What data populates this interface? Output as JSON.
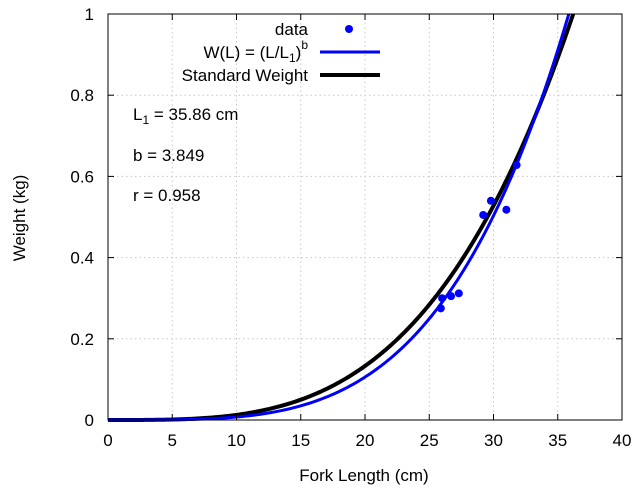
{
  "chart_data": {
    "type": "scatter",
    "xlabel": "Fork Length (cm)",
    "ylabel": "Weight (kg)",
    "xlim": [
      0,
      40
    ],
    "ylim": [
      0,
      1
    ],
    "x_ticks": [
      "0",
      "5",
      "10",
      "15",
      "20",
      "25",
      "30",
      "35",
      "40"
    ],
    "y_ticks": [
      "0",
      "0.2",
      "0.4",
      "0.6",
      "0.8",
      "1"
    ],
    "grid": true,
    "legend_position": "top-right",
    "legend": [
      {
        "label": "data",
        "style": "points",
        "color": "#0000ff"
      },
      {
        "label_main": "W(L) = (L/L",
        "label_sub": "1",
        "label_close": ")",
        "label_sup": "b",
        "style": "line",
        "color": "#0000ff"
      },
      {
        "label": "Standard Weight",
        "style": "line",
        "color": "#000000"
      }
    ],
    "annotations": {
      "l1_main": "L",
      "l1_sub": "1",
      "l1_rest": " = 35.86 cm",
      "b": "b = 3.849",
      "r": "r = 0.958"
    },
    "series": [
      {
        "name": "data",
        "kind": "points",
        "color": "#0000ff",
        "points": [
          [
            25.9,
            0.275
          ],
          [
            26.0,
            0.3
          ],
          [
            26.7,
            0.305
          ],
          [
            27.3,
            0.312
          ],
          [
            29.2,
            0.505
          ],
          [
            29.8,
            0.54
          ],
          [
            31.0,
            0.518
          ],
          [
            31.8,
            0.628
          ]
        ]
      },
      {
        "name": "W(L) = (L/L1)^b",
        "kind": "curve",
        "color": "#0000ff",
        "L1": 35.86,
        "b": 3.849
      },
      {
        "name": "Standard Weight",
        "kind": "curve",
        "color": "#000000",
        "L1": 36.2,
        "b": 3.4
      }
    ]
  }
}
